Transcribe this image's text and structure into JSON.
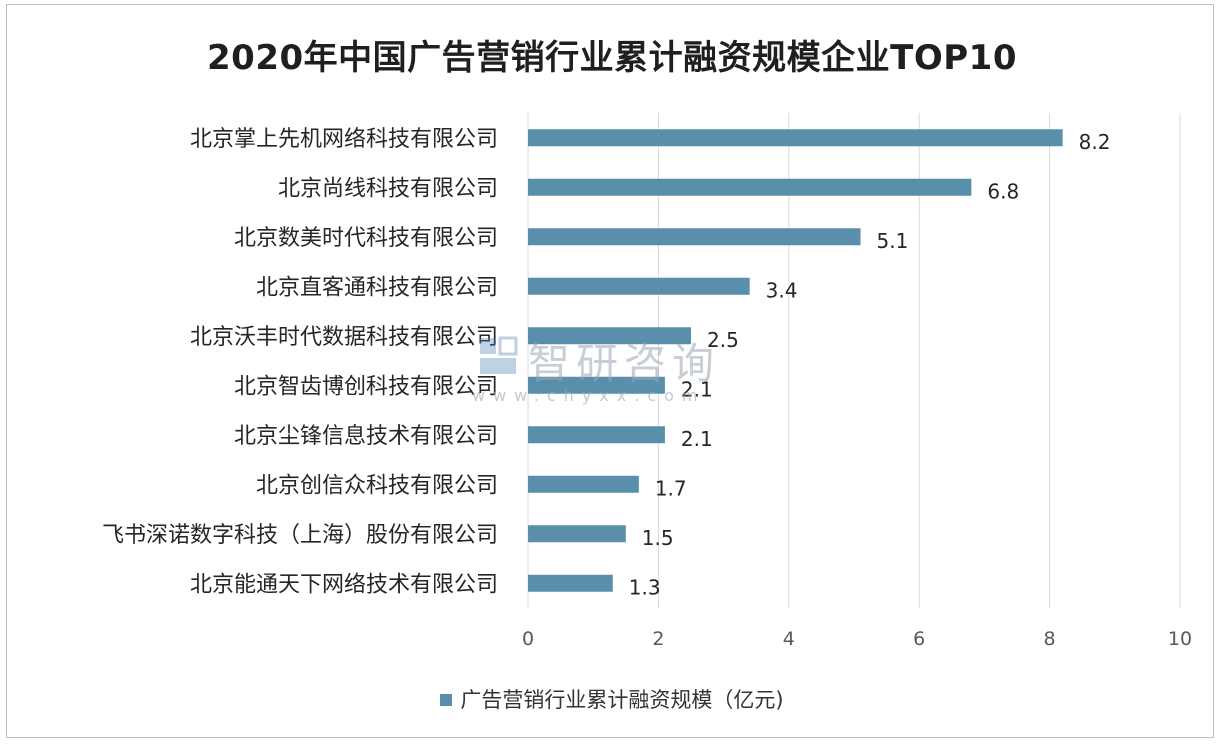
{
  "colors": {
    "bar": "#5a8fab",
    "grid": "#d9d9d9",
    "axis_text": "#595959",
    "label_text": "#262626"
  },
  "watermark": {
    "brand": "智研咨询",
    "url": "www.chyxx.com"
  },
  "chart_data": {
    "type": "bar",
    "orientation": "horizontal",
    "title": "2020年中国广告营销行业累计融资规模企业TOP10",
    "categories": [
      "北京掌上先机网络科技有限公司",
      "北京尚线科技有限公司",
      "北京数美时代科技有限公司",
      "北京直客通科技有限公司",
      "北京沃丰时代数据科技有限公司",
      "北京智齿博创科技有限公司",
      "北京尘锋信息技术有限公司",
      "北京创信众科技有限公司",
      "飞书深诺数字科技（上海）股份有限公司",
      "北京能通天下网络技术有限公司"
    ],
    "series": [
      {
        "name": "广告营销行业累计融资规模（亿元)",
        "values": [
          8.2,
          6.8,
          5.1,
          3.4,
          2.5,
          2.1,
          2.1,
          1.7,
          1.5,
          1.3
        ],
        "labels": [
          "8.2",
          "6.8",
          "5.1",
          "3.4",
          "2.5",
          "2.1",
          "2.1",
          "1.7",
          "1.5",
          "1.3"
        ]
      }
    ],
    "xlim": [
      0,
      10
    ],
    "xticks": [
      0,
      2,
      4,
      6,
      8,
      10
    ],
    "xtick_labels": [
      "0",
      "2",
      "4",
      "6",
      "8",
      "10"
    ],
    "grid": true,
    "legend_position": "bottom"
  }
}
